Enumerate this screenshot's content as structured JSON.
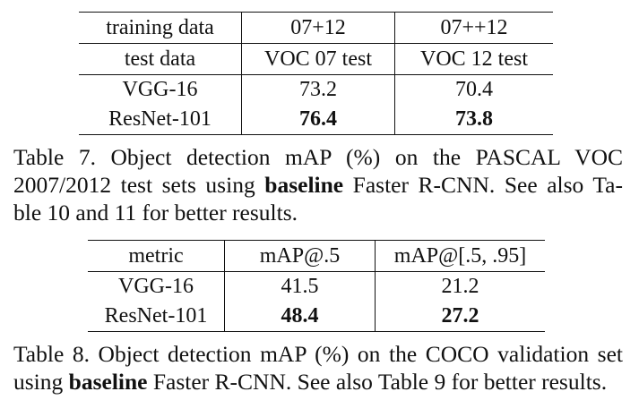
{
  "table7": {
    "header": [
      "training data",
      "07+12",
      "07++12"
    ],
    "subheader": [
      "test data",
      "VOC 07 test",
      "VOC 12 test"
    ],
    "rows": [
      {
        "model": "VGG-16",
        "voc07": "73.2",
        "voc12": "70.4"
      },
      {
        "model": "ResNet-101",
        "voc07": "76.4",
        "voc12": "73.8"
      }
    ],
    "caption": {
      "line1": "Table 7. Object detection mAP (%) on the PASCAL VOC",
      "line2_pre": "2007/2012 test sets using",
      "line2_bold": "baseline",
      "line2_post": "Faster R-CNN. See also Ta-",
      "line3": "ble 10 and 11 for better results."
    }
  },
  "table8": {
    "header": [
      "metric",
      "mAP@.5",
      "mAP@[.5, .95]"
    ],
    "rows": [
      {
        "model": "VGG-16",
        "map50": "41.5",
        "map5095": "21.2"
      },
      {
        "model": "ResNet-101",
        "map50": "48.4",
        "map5095": "27.2"
      }
    ],
    "caption": {
      "line1": "Table 8. Object detection mAP (%) on the COCO validation set",
      "line2_pre": "using",
      "line2_bold": "baseline",
      "line2_post": "Faster R-CNN. See also Table 9 for better results."
    }
  }
}
